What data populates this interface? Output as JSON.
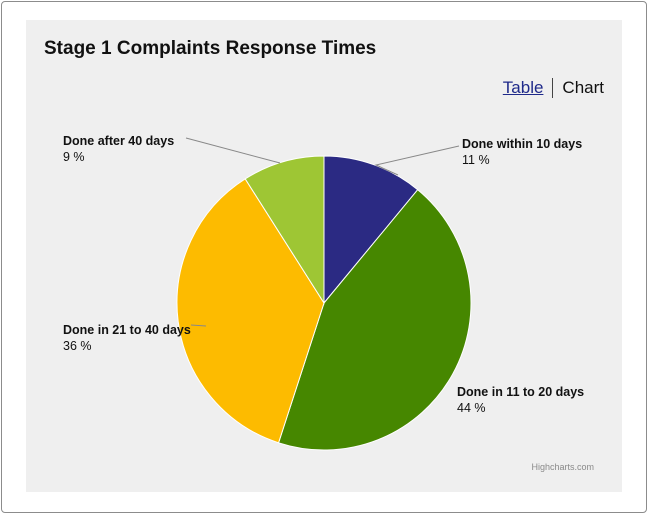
{
  "chart_data": {
    "type": "pie",
    "title": "Stage 1 Complaints Response Times",
    "slices": [
      {
        "label": "Done within 10 days",
        "value": 11,
        "value_label": "11 %",
        "color": "#2b2a83"
      },
      {
        "label": "Done in 11 to 20 days",
        "value": 44,
        "value_label": "44 %",
        "color": "#468700"
      },
      {
        "label": "Done in 21 to 40 days",
        "value": 36,
        "value_label": "36 %",
        "color": "#fdbb00"
      },
      {
        "label": "Done after 40 days",
        "value": 9,
        "value_label": "9 %",
        "color": "#9ec634"
      }
    ]
  },
  "view_toggle": {
    "table_label": "Table",
    "chart_label": "Chart"
  },
  "credit": "Highcharts.com"
}
